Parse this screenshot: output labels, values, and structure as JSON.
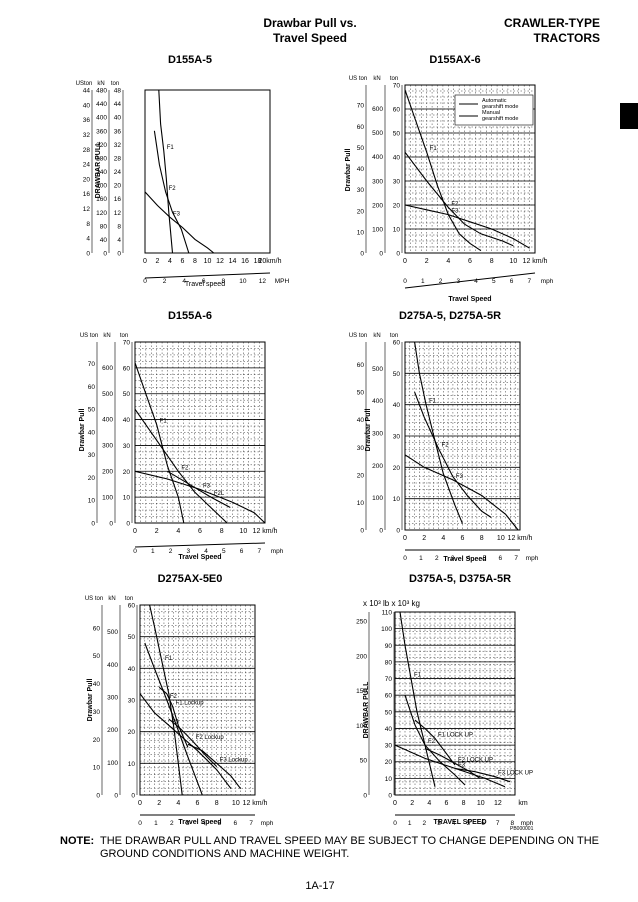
{
  "header": {
    "title": "Drawbar Pull vs.\nTravel Speed",
    "category": "CRAWLER-TYPE\nTRACTORS"
  },
  "note": {
    "label": "NOTE:",
    "text": "THE DRAWBAR PULL AND TRAVEL SPEED MAY BE SUBJECT TO CHANGE DEPENDING ON THE GROUND CONDITIONS AND MACHINE WEIGHT."
  },
  "page_number": "1A-17",
  "chart_data": [
    {
      "type": "line",
      "title": "D155A-5",
      "xlabel": "Travel speed",
      "ylabel": "DRAWBAR PULL",
      "x_unit": "km/h",
      "y_unit": "ton",
      "xlim": [
        0,
        20
      ],
      "ylim": [
        0,
        48
      ],
      "x_ticks": [
        "0",
        "2",
        "4",
        "6",
        "8",
        "10",
        "12",
        "14",
        "16",
        "18",
        "20km/h"
      ],
      "x2_ticks": [
        "0",
        "2",
        "4",
        "6",
        "8",
        "10",
        "12",
        "MPH"
      ],
      "y_ticks_ton": [
        "0",
        "4",
        "8",
        "12",
        "16",
        "20",
        "24",
        "28",
        "32",
        "36",
        "40",
        "44",
        "48"
      ],
      "y_ticks_kn": [
        "0",
        "40",
        "80",
        "120",
        "160",
        "200",
        "240",
        "280",
        "320",
        "360",
        "400",
        "440",
        "480"
      ],
      "y_ticks_uston": [
        "0",
        "4",
        "8",
        "12",
        "16",
        "20",
        "24",
        "28",
        "32",
        "36",
        "40",
        "44"
      ],
      "y_axis_headers": [
        "USton",
        "kN",
        "ton"
      ],
      "grid": false,
      "series": [
        {
          "name": "F1",
          "points": [
            [
              2.2,
              48
            ],
            [
              2.5,
              38
            ],
            [
              3.0,
              30
            ],
            [
              3.4,
              22
            ],
            [
              3.8,
              12
            ],
            [
              4.4,
              0
            ]
          ]
        },
        {
          "name": "F2",
          "points": [
            [
              1.5,
              36
            ],
            [
              2.3,
              26
            ],
            [
              3.3,
              18
            ],
            [
              4.4,
              12
            ],
            [
              5.8,
              7
            ],
            [
              7.0,
              0
            ]
          ]
        },
        {
          "name": "F3",
          "points": [
            [
              0,
              18
            ],
            [
              2,
              14
            ],
            [
              4,
              10.5
            ],
            [
              6,
              7.5
            ],
            [
              8,
              4
            ],
            [
              10,
              1.5
            ],
            [
              11,
              0
            ]
          ]
        }
      ]
    },
    {
      "type": "line",
      "title": "D155AX-6",
      "xlabel": "Travel Speed",
      "ylabel": "Drawbar Pull",
      "x_unit": "km/h",
      "y_unit": "ton",
      "xlim": [
        0,
        12
      ],
      "ylim": [
        0,
        70
      ],
      "x_ticks": [
        "0",
        "2",
        "4",
        "6",
        "8",
        "10",
        "12 km/h"
      ],
      "x2_ticks": [
        "0",
        "1",
        "2",
        "3",
        "4",
        "5",
        "6",
        "7",
        "mph"
      ],
      "y_ticks_ton": [
        "0",
        "10",
        "20",
        "30",
        "40",
        "50",
        "60",
        "70"
      ],
      "y_ticks_kn": [
        "0",
        "100",
        "200",
        "300",
        "400",
        "500",
        "600"
      ],
      "y_ticks_uston": [
        "0",
        "10",
        "20",
        "30",
        "40",
        "50",
        "60",
        "70"
      ],
      "y_axis_headers": [
        "US ton",
        "kN",
        "ton"
      ],
      "grid": true,
      "legend": {
        "position": "top-right",
        "entries": [
          "Automatic\ngearshift mode",
          "Manual\ngearshift mode"
        ]
      },
      "series": [
        {
          "name": "F1",
          "points": [
            [
              0,
              68
            ],
            [
              1,
              55
            ],
            [
              2,
              42
            ],
            [
              3,
              28
            ],
            [
              4,
              16
            ],
            [
              5,
              8
            ],
            [
              6,
              4
            ],
            [
              7,
              1
            ]
          ]
        },
        {
          "name": "F2",
          "points": [
            [
              0,
              42
            ],
            [
              2,
              30
            ],
            [
              4,
              19
            ],
            [
              5.5,
              12
            ],
            [
              7,
              8
            ],
            [
              9,
              5
            ],
            [
              10,
              3
            ]
          ]
        },
        {
          "name": "F3",
          "points": [
            [
              0,
              20
            ],
            [
              2,
              18
            ],
            [
              4,
              16
            ],
            [
              6,
              13
            ],
            [
              8,
              10
            ],
            [
              10,
              6
            ],
            [
              11.5,
              2
            ]
          ]
        }
      ]
    },
    {
      "type": "line",
      "title": "D155A-6",
      "xlabel": "Travel Speed",
      "ylabel": "Drawbar Pull",
      "x_unit": "km/h",
      "y_unit": "ton",
      "xlim": [
        0,
        12
      ],
      "ylim": [
        0,
        70
      ],
      "x_ticks": [
        "0",
        "2",
        "4",
        "6",
        "8",
        "10",
        "12 km/h"
      ],
      "x2_ticks": [
        "0",
        "1",
        "2",
        "3",
        "4",
        "5",
        "6",
        "7",
        "mph"
      ],
      "y_ticks_ton": [
        "0",
        "10",
        "20",
        "30",
        "40",
        "50",
        "60",
        "70"
      ],
      "y_ticks_kn": [
        "0",
        "100",
        "200",
        "300",
        "400",
        "500",
        "600"
      ],
      "y_ticks_uston": [
        "0",
        "10",
        "20",
        "30",
        "40",
        "50",
        "60",
        "70"
      ],
      "y_axis_headers": [
        "US ton",
        "kN",
        "ton"
      ],
      "grid": true,
      "series": [
        {
          "name": "F1",
          "points": [
            [
              0,
              62
            ],
            [
              1,
              50
            ],
            [
              2,
              38
            ],
            [
              3,
              22
            ],
            [
              4,
              10
            ],
            [
              4.5,
              0
            ]
          ]
        },
        {
          "name": "F2",
          "points": [
            [
              0,
              44
            ],
            [
              2,
              32
            ],
            [
              4,
              20
            ],
            [
              5.5,
              12
            ],
            [
              7,
              6
            ],
            [
              8.5,
              0
            ]
          ]
        },
        {
          "name": "F2L",
          "points": [
            [
              3,
              20
            ],
            [
              5,
              15
            ],
            [
              7,
              10
            ],
            [
              8.8,
              6
            ]
          ]
        },
        {
          "name": "F3",
          "points": [
            [
              0,
              20
            ],
            [
              3,
              17
            ],
            [
              6,
              13
            ],
            [
              9,
              8
            ],
            [
              11,
              4
            ],
            [
              12,
              0
            ]
          ]
        }
      ]
    },
    {
      "type": "line",
      "title": "D275A-5, D275A-5R",
      "xlabel": "Travel Speed",
      "ylabel": "Drawbar Pull",
      "x_unit": "km/h",
      "y_unit": "ton",
      "xlim": [
        0,
        12
      ],
      "ylim": [
        0,
        60
      ],
      "x_ticks": [
        "0",
        "2",
        "4",
        "6",
        "8",
        "10",
        "12 km/h"
      ],
      "x2_ticks": [
        "0",
        "1",
        "2",
        "3",
        "4",
        "5",
        "6",
        "7",
        "mph"
      ],
      "y_ticks_ton": [
        "0",
        "10",
        "20",
        "30",
        "40",
        "50",
        "60"
      ],
      "y_ticks_kn": [
        "0",
        "100",
        "200",
        "300",
        "400",
        "500"
      ],
      "y_ticks_uston": [
        "0",
        "10",
        "20",
        "30",
        "40",
        "50",
        "60"
      ],
      "y_axis_headers": [
        "US ton",
        "kN",
        "ton"
      ],
      "grid": true,
      "series": [
        {
          "name": "F1",
          "points": [
            [
              1,
              60
            ],
            [
              1.5,
              50
            ],
            [
              2.2,
              40
            ],
            [
              3,
              30
            ],
            [
              4,
              18
            ],
            [
              5.2,
              8
            ],
            [
              6,
              2
            ]
          ]
        },
        {
          "name": "F2",
          "points": [
            [
              1,
              44
            ],
            [
              2,
              36
            ],
            [
              3.5,
              26
            ],
            [
              5,
              17
            ],
            [
              6.5,
              11
            ],
            [
              8,
              6
            ],
            [
              9,
              4
            ]
          ]
        },
        {
          "name": "F3",
          "points": [
            [
              0,
              24
            ],
            [
              2,
              20
            ],
            [
              5,
              16
            ],
            [
              8,
              11
            ],
            [
              10.5,
              5
            ],
            [
              11.8,
              0
            ]
          ]
        }
      ]
    },
    {
      "type": "line",
      "title": "D275AX-5E0",
      "xlabel": "Travel Speed",
      "ylabel": "Drawbar Pull",
      "x_unit": "km/h",
      "y_unit": "ton",
      "xlim": [
        0,
        12
      ],
      "ylim": [
        0,
        60
      ],
      "x_ticks": [
        "0",
        "2",
        "4",
        "6",
        "8",
        "10",
        "12 km/h"
      ],
      "x2_ticks": [
        "0",
        "1",
        "2",
        "3",
        "4",
        "5",
        "6",
        "7",
        "mph"
      ],
      "y_ticks_ton": [
        "0",
        "10",
        "20",
        "30",
        "40",
        "50",
        "60"
      ],
      "y_ticks_kn": [
        "0",
        "100",
        "200",
        "300",
        "400",
        "500"
      ],
      "y_ticks_uston": [
        "0",
        "10",
        "20",
        "30",
        "40",
        "50",
        "60"
      ],
      "y_axis_headers": [
        "US ton",
        "kN",
        "ton"
      ],
      "grid": true,
      "series": [
        {
          "name": "F1",
          "points": [
            [
              1,
              60
            ],
            [
              1.6,
              52
            ],
            [
              2.3,
              42
            ],
            [
              3,
              32
            ],
            [
              3.5,
              22
            ],
            [
              4,
              10
            ],
            [
              4.4,
              0
            ]
          ]
        },
        {
          "name": "F2",
          "points": [
            [
              0.5,
              48
            ],
            [
              1.5,
              40
            ],
            [
              2.8,
              30
            ],
            [
              3.8,
              22
            ],
            [
              5,
              12
            ],
            [
              6,
              4
            ],
            [
              6.5,
              0
            ]
          ]
        },
        {
          "name": "F3",
          "points": [
            [
              0,
              32
            ],
            [
              1.5,
              26
            ],
            [
              3,
              22
            ],
            [
              4.5,
              18
            ],
            [
              6,
              14
            ],
            [
              8,
              8
            ],
            [
              9.5,
              2
            ]
          ]
        },
        {
          "name": "F1 Lockup",
          "points": [
            [
              2,
              34
            ],
            [
              2.8,
              32
            ],
            [
              3.4,
              28
            ],
            [
              4,
              22
            ],
            [
              5,
              15
            ]
          ]
        },
        {
          "name": "F2 Lockup",
          "points": [
            [
              3,
              24
            ],
            [
              4.2,
              21
            ],
            [
              5.5,
              17
            ],
            [
              7,
              12
            ],
            [
              8,
              9
            ]
          ]
        },
        {
          "name": "F3 Lockup",
          "points": [
            [
              5,
              16
            ],
            [
              6.5,
              14
            ],
            [
              8,
              10
            ],
            [
              9.5,
              6
            ],
            [
              10.5,
              2
            ]
          ]
        }
      ]
    },
    {
      "type": "line",
      "title": "D375A-5, D375A-5R",
      "xlabel": "TRAVEL SPEED",
      "ylabel": "DRAWBAR PULL",
      "axis_multiplier": "x 10³ lb x 10³ kg",
      "x_unit": "km",
      "y_unit": "10³ kg",
      "xlim": [
        0,
        12
      ],
      "ylim": [
        0,
        110
      ],
      "x_ticks": [
        "0",
        "2",
        "4",
        "6",
        "8",
        "10",
        "12",
        "km"
      ],
      "x2_ticks": [
        "0",
        "1",
        "2",
        "3",
        "4",
        "5",
        "6",
        "7",
        "8",
        "mph"
      ],
      "y_ticks_kg": [
        "0",
        "10",
        "20",
        "30",
        "40",
        "50",
        "60",
        "70",
        "80",
        "90",
        "100",
        "110"
      ],
      "y_ticks_lb": [
        "0",
        "50",
        "100",
        "150",
        "200",
        "250"
      ],
      "grid": true,
      "figure_code": "PB000001",
      "series": [
        {
          "name": "F1",
          "points": [
            [
              0.5,
              110
            ],
            [
              1,
              90
            ],
            [
              1.6,
              70
            ],
            [
              2.2,
              50
            ],
            [
              2.8,
              35
            ],
            [
              3.4,
              20
            ],
            [
              4,
              5
            ]
          ]
        },
        {
          "name": "F1 LOCK UP",
          "points": [
            [
              2,
              45
            ],
            [
              3,
              40
            ],
            [
              4,
              34
            ],
            [
              5,
              26
            ],
            [
              6,
              18
            ]
          ]
        },
        {
          "name": "F2",
          "points": [
            [
              1,
              60
            ],
            [
              2,
              42
            ],
            [
              3,
              30
            ],
            [
              4.5,
              20
            ],
            [
              6,
              12
            ],
            [
              7,
              6
            ]
          ]
        },
        {
          "name": "F2 LOCK UP",
          "points": [
            [
              3,
              28
            ],
            [
              4.5,
              24
            ],
            [
              6,
              19
            ],
            [
              7.5,
              14
            ],
            [
              8.5,
              10
            ]
          ]
        },
        {
          "name": "F3",
          "points": [
            [
              0,
              30
            ],
            [
              3,
              22
            ],
            [
              6,
              16
            ],
            [
              9,
              10
            ],
            [
              11,
              5
            ]
          ]
        },
        {
          "name": "F3 LOCK UP",
          "points": [
            [
              6,
              16
            ],
            [
              8,
              14
            ],
            [
              10,
              11
            ],
            [
              11.5,
              8
            ]
          ]
        }
      ]
    }
  ]
}
